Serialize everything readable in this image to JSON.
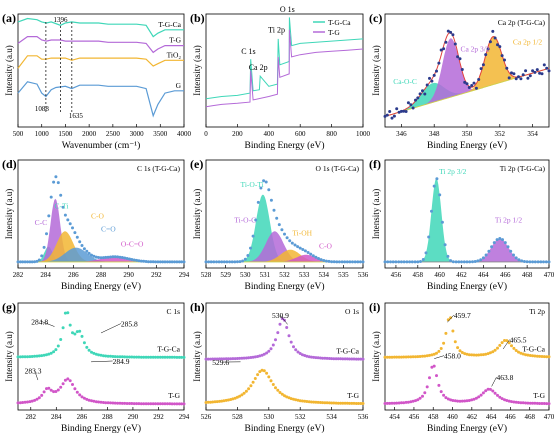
{
  "colors": {
    "teal": "#3fd7b8",
    "purple": "#b46ad8",
    "orange": "#f2b632",
    "blue": "#5b9bd5",
    "magenta": "#d156c8",
    "green": "#7dc46b",
    "navy": "#2b3a8c",
    "red": "#e0413c",
    "olive": "#cfd04a",
    "grey": "#888888"
  },
  "chart_data": [
    {
      "panel": "(a)",
      "type": "line",
      "xlabel": "Wavenumber (cm⁻¹)",
      "ylabel": "Intensity (a.u)",
      "xlim": [
        500,
        4000
      ],
      "xticks": [
        500,
        1000,
        1500,
        2000,
        2500,
        3000,
        3500,
        4000
      ],
      "series": [
        {
          "name": "T-G-Ca",
          "x": [
            500,
            700,
            900,
            1000,
            1100,
            1200,
            1396,
            1500,
            1635,
            1800,
            2000,
            2200,
            2400,
            2600,
            2800,
            3000,
            3200,
            3350,
            3450,
            3600,
            3800,
            4000
          ],
          "y": [
            0.93,
            0.96,
            0.95,
            0.93,
            0.92,
            0.93,
            0.9,
            0.92,
            0.93,
            0.92,
            0.92,
            0.92,
            0.91,
            0.91,
            0.91,
            0.91,
            0.9,
            0.8,
            0.83,
            0.86,
            0.86,
            0.86
          ]
        },
        {
          "name": "T-G",
          "x": [
            500,
            700,
            900,
            1000,
            1100,
            1200,
            1396,
            1500,
            1635,
            1800,
            2000,
            2200,
            2400,
            2600,
            2800,
            3000,
            3200,
            3350,
            3450,
            3600,
            3800,
            4000
          ],
          "y": [
            0.74,
            0.8,
            0.8,
            0.77,
            0.76,
            0.77,
            0.77,
            0.76,
            0.76,
            0.76,
            0.76,
            0.76,
            0.75,
            0.75,
            0.75,
            0.75,
            0.74,
            0.66,
            0.69,
            0.72,
            0.72,
            0.72
          ]
        },
        {
          "name": "TiO₂",
          "x": [
            500,
            700,
            900,
            1000,
            1088,
            1200,
            1396,
            1500,
            1635,
            1800,
            2000,
            2200,
            2400,
            2600,
            2800,
            3000,
            3200,
            3350,
            3450,
            3600,
            3800,
            4000
          ],
          "y": [
            0.52,
            0.63,
            0.63,
            0.6,
            0.6,
            0.61,
            0.61,
            0.61,
            0.59,
            0.61,
            0.61,
            0.61,
            0.61,
            0.61,
            0.61,
            0.61,
            0.6,
            0.54,
            0.56,
            0.59,
            0.59,
            0.59
          ]
        },
        {
          "name": "G",
          "x": [
            500,
            700,
            900,
            1000,
            1088,
            1200,
            1300,
            1500,
            1635,
            1800,
            2000,
            2200,
            2400,
            2600,
            2800,
            3000,
            3200,
            3350,
            3450,
            3600,
            3800,
            4000
          ],
          "y": [
            0.3,
            0.4,
            0.38,
            0.3,
            0.27,
            0.33,
            0.35,
            0.36,
            0.34,
            0.37,
            0.37,
            0.37,
            0.36,
            0.36,
            0.36,
            0.36,
            0.34,
            0.1,
            0.2,
            0.3,
            0.32,
            0.32
          ]
        }
      ],
      "annotations": [
        "1396",
        "1088",
        "1635"
      ]
    },
    {
      "panel": "(b)",
      "type": "line",
      "xlabel": "Binding Energy (eV)",
      "ylabel": "Intensity (a.u)",
      "xlim": [
        0,
        1000
      ],
      "xticks": [
        0,
        200,
        400,
        600,
        800,
        1000
      ],
      "legend": "top-right",
      "series": [
        {
          "name": "T-G-Ca",
          "x": [
            0,
            50,
            100,
            200,
            280,
            285,
            300,
            340,
            345,
            400,
            455,
            460,
            470,
            530,
            531,
            545,
            600,
            700,
            800,
            900,
            1000
          ],
          "y": [
            0.25,
            0.26,
            0.27,
            0.28,
            0.3,
            0.6,
            0.32,
            0.33,
            0.45,
            0.36,
            0.38,
            0.78,
            0.55,
            0.58,
            0.97,
            0.72,
            0.74,
            0.75,
            0.76,
            0.77,
            0.78
          ]
        },
        {
          "name": "T-G",
          "x": [
            0,
            50,
            100,
            200,
            280,
            285,
            300,
            400,
            455,
            460,
            470,
            530,
            531,
            545,
            600,
            700,
            800,
            900,
            1000
          ],
          "y": [
            0.18,
            0.19,
            0.2,
            0.21,
            0.22,
            0.5,
            0.24,
            0.27,
            0.29,
            0.62,
            0.44,
            0.47,
            0.86,
            0.62,
            0.64,
            0.66,
            0.67,
            0.68,
            0.69
          ]
        }
      ],
      "annotations": [
        "C 1s",
        "Ca 2p",
        "Ti  2p",
        "O 1s"
      ]
    },
    {
      "panel": "(c)",
      "type": "scatter",
      "title": "Ca 2p (T-G-Ca)",
      "xlabel": "Binding Energy (eV)",
      "ylabel": "Intensity (a.u)",
      "xlim": [
        345,
        355
      ],
      "xticks": [
        346,
        348,
        350,
        352,
        354
      ],
      "peaks": [
        {
          "name": "Ca-O-C",
          "center": 347.9,
          "height": 0.18,
          "width": 0.7
        },
        {
          "name": "Ca 2p 3/2",
          "center": 349.0,
          "height": 0.55,
          "width": 0.5
        },
        {
          "name": "Ca 2p 1/2",
          "center": 351.6,
          "height": 0.45,
          "width": 0.5
        }
      ],
      "annotations": [
        "Ca-O-C",
        "Ca 2p 3/2",
        "Ca 2p 1/2"
      ]
    },
    {
      "panel": "(d)",
      "type": "scatter",
      "title": "C 1s (T-G-Ca)",
      "xlabel": "Binding Energy (eV)",
      "ylabel": "Intensity (a.u)",
      "xlim": [
        282,
        294
      ],
      "xticks": [
        282,
        284,
        286,
        288,
        290,
        292,
        294
      ],
      "peaks": [
        {
          "name": "C-Ti",
          "center": 284.2,
          "height": 0.15,
          "width": 0.3
        },
        {
          "name": "C-C",
          "center": 284.7,
          "height": 0.62,
          "width": 0.35
        },
        {
          "name": "C-O",
          "center": 285.4,
          "height": 0.3,
          "width": 0.6
        },
        {
          "name": "C=O",
          "center": 286.2,
          "height": 0.14,
          "width": 0.8
        },
        {
          "name": "O-C=O",
          "center": 289.0,
          "height": 0.05,
          "width": 1.0
        }
      ],
      "annotations": [
        "C-Ti",
        "C-C",
        "C-O",
        "C=O",
        "O-C=O"
      ]
    },
    {
      "panel": "(e)",
      "type": "scatter",
      "title": "O 1s (T-G-Ca)",
      "xlabel": "Binding Energy (eV)",
      "ylabel": "Intensity (a.u)",
      "xlim": [
        528,
        536
      ],
      "xticks": [
        528,
        529,
        530,
        531,
        532,
        533,
        534,
        535,
        536
      ],
      "peaks": [
        {
          "name": "Ti-O-Ti",
          "center": 530.9,
          "height": 0.66,
          "width": 0.35
        },
        {
          "name": "Ti-O-C",
          "center": 531.5,
          "height": 0.3,
          "width": 0.45
        },
        {
          "name": "Ti-OH",
          "center": 532.3,
          "height": 0.12,
          "width": 0.5
        },
        {
          "name": "C-O",
          "center": 533.1,
          "height": 0.07,
          "width": 0.5
        }
      ],
      "annotations": [
        "Ti-O-Ti",
        "Ti-O-C",
        "Ti-OH",
        "C-O"
      ]
    },
    {
      "panel": "(f)",
      "type": "scatter",
      "title": "Ti  2p (T-G-Ca)",
      "xlabel": "Binding Energy (eV)",
      "ylabel": "Intensity (a.u)",
      "xlim": [
        455,
        470
      ],
      "xticks": [
        456,
        458,
        460,
        462,
        464,
        466,
        468,
        470
      ],
      "peaks": [
        {
          "name": "Ti 2p 3/2",
          "center": 459.7,
          "height": 0.82,
          "width": 0.45
        },
        {
          "name": "Ti 2p 1/2",
          "center": 465.5,
          "height": 0.23,
          "width": 0.8
        }
      ],
      "annotations": [
        "Ti 2p 3/2",
        "Ti 2p 1/2"
      ]
    },
    {
      "panel": "(g)",
      "type": "scatter",
      "title": "C 1s",
      "xlabel": "Binding Energy (eV)",
      "ylabel": "Intensity (a.u)",
      "xlim": [
        281,
        294
      ],
      "xticks": [
        282,
        284,
        286,
        288,
        290,
        292,
        294
      ],
      "series": [
        {
          "name": "T-G-Ca",
          "peaks": [
            {
              "center": 284.8,
              "height": 0.9
            },
            {
              "center": 285.8,
              "height": 0.45
            }
          ]
        },
        {
          "name": "T-G",
          "peaks": [
            {
              "center": 283.3,
              "height": 0.25
            },
            {
              "center": 284.9,
              "height": 0.5
            }
          ]
        }
      ],
      "annotations": [
        "284.8",
        "285.8",
        "283.3",
        "284.9"
      ]
    },
    {
      "panel": "(h)",
      "type": "scatter",
      "title": "O 1s",
      "xlabel": "Binding Energy (eV)",
      "ylabel": "Intensity (a.u)",
      "xlim": [
        526,
        536
      ],
      "xticks": [
        526,
        528,
        530,
        532,
        534,
        536
      ],
      "series": [
        {
          "name": "T-G-Ca",
          "peaks": [
            {
              "center": 530.9,
              "height": 0.85
            }
          ]
        },
        {
          "name": "T-G",
          "peaks": [
            {
              "center": 529.6,
              "height": 0.7
            }
          ]
        }
      ],
      "annotations": [
        "530.9",
        "529.6"
      ]
    },
    {
      "panel": "(i)",
      "type": "scatter",
      "title": "Ti 2p",
      "xlabel": "Binding Energy (eV)",
      "ylabel": "Intensity (a.u)",
      "xlim": [
        453,
        470
      ],
      "xticks": [
        454,
        456,
        458,
        460,
        462,
        464,
        466,
        468,
        470
      ],
      "series": [
        {
          "name": "T-G-Ca",
          "peaks": [
            {
              "center": 459.7,
              "height": 0.85
            },
            {
              "center": 465.5,
              "height": 0.35
            }
          ]
        },
        {
          "name": "T-G",
          "peaks": [
            {
              "center": 458.0,
              "height": 0.8
            },
            {
              "center": 463.8,
              "height": 0.3
            }
          ]
        }
      ],
      "annotations": [
        "459.7",
        "465.5",
        "458.0",
        "463.8"
      ]
    }
  ]
}
